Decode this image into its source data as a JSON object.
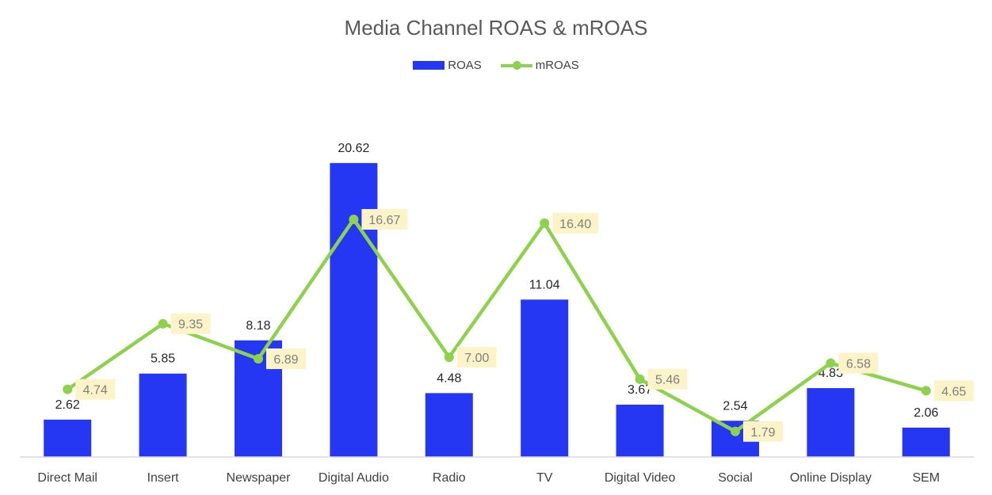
{
  "chart_data": {
    "type": "bar",
    "title": "Media Channel ROAS & mROAS",
    "xlabel": "",
    "ylabel": "",
    "ylim": [
      0,
      24
    ],
    "grid": false,
    "legend_position": "top",
    "categories": [
      "Direct Mail",
      "Insert",
      "Newspaper",
      "Digital Audio",
      "Radio",
      "TV",
      "Digital Video",
      "Social",
      "Online Display",
      "SEM"
    ],
    "series": [
      {
        "name": "ROAS",
        "type": "bar",
        "color": "#2537f2",
        "values": [
          2.62,
          5.85,
          8.18,
          20.62,
          4.48,
          11.04,
          3.67,
          2.54,
          4.83,
          2.06
        ],
        "labels": [
          "2.62",
          "5.85",
          "8.18",
          "20.62",
          "4.48",
          "11.04",
          "3.67",
          "2.54",
          "4.83",
          "2.06"
        ]
      },
      {
        "name": "mROAS",
        "type": "line",
        "color": "#8ed14f",
        "label_bg": "#fdf3c9",
        "label_color": "#7f7f7f",
        "values": [
          4.74,
          9.35,
          6.89,
          16.67,
          7.0,
          16.4,
          5.46,
          1.79,
          6.58,
          4.65
        ],
        "labels": [
          "4.74",
          "9.35",
          "6.89",
          "16.67",
          "7.00",
          "16.40",
          "5.46",
          "1.79",
          "6.58",
          "4.65"
        ]
      }
    ]
  }
}
